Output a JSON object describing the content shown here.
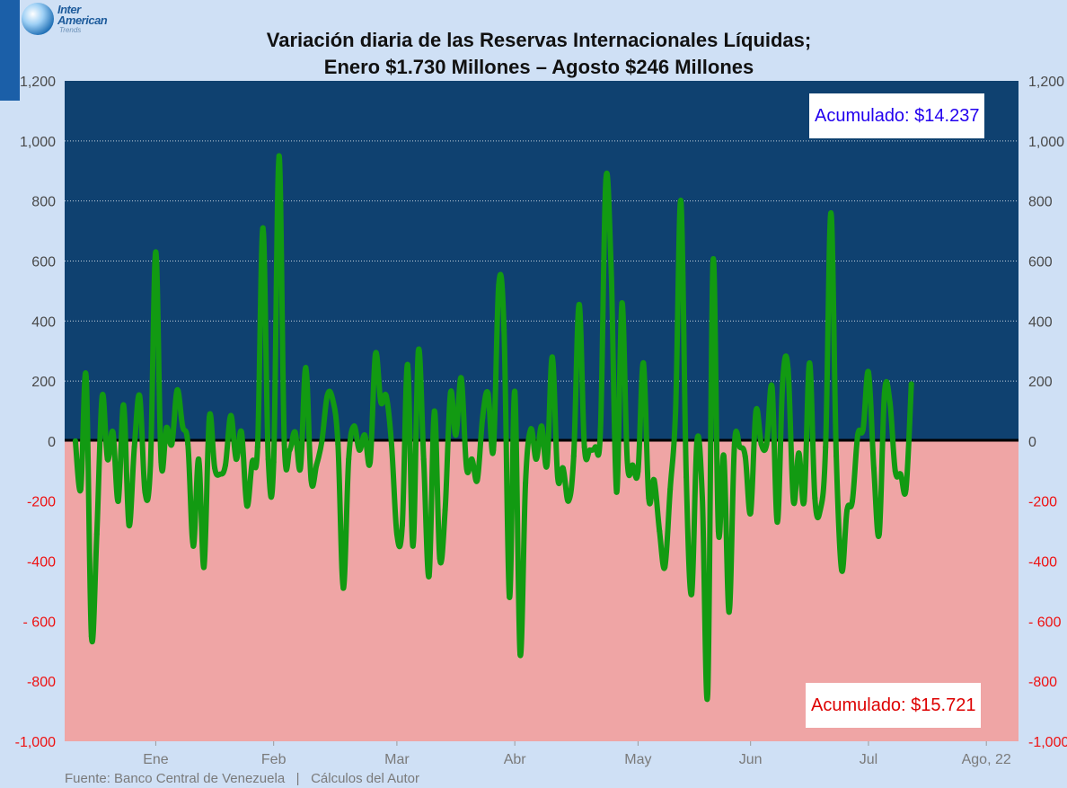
{
  "logo": {
    "line1": "Inter",
    "line2": "American",
    "line3": "Trends"
  },
  "title": {
    "line1": "Variación diaria de las Reservas Internacionales Líquidas;",
    "line2": "Enero $1.730 Millones – Agosto $246 Millones"
  },
  "annotations": {
    "positive": "Acumulado: $14.237",
    "negative": "Acumulado: $15.721"
  },
  "source": "Fuente: Banco Central de Venezuela   |   Cálculos del Autor",
  "colors": {
    "positive_area": "#0f4170",
    "negative_area": "#efa5a5",
    "series_line": "#129a12",
    "zero_line": "#000000",
    "negative_tick": "#ee1111"
  },
  "chart_data": {
    "type": "line",
    "title": "Variación diaria de las Reservas Internacionales Líquidas; Enero $1.730 Millones – Agosto $246 Millones",
    "xlabel": "",
    "ylabel": "",
    "ylim": [
      -1000,
      1200
    ],
    "grid": true,
    "y_ticks_left": [
      "1,200",
      "1,000",
      "800",
      "600",
      "400",
      "200",
      "0",
      "-200",
      "-400",
      "- 600",
      "-800",
      "-1,000"
    ],
    "y_ticks_right": [
      "1,200",
      "1,000",
      "800",
      "600",
      "400",
      "200",
      "0",
      "-200",
      "-400",
      "- 600",
      "-800",
      "-1,000"
    ],
    "x_ticks": [
      {
        "label": "Ene",
        "x": 15
      },
      {
        "label": "Feb",
        "x": 37
      },
      {
        "label": "Mar",
        "x": 60
      },
      {
        "label": "Abr",
        "x": 82
      },
      {
        "label": "May",
        "x": 105
      },
      {
        "label": "Jun",
        "x": 126
      },
      {
        "label": "Jul",
        "x": 148
      },
      {
        "label": "Ago, 22",
        "x": 170
      }
    ],
    "x_range": [
      -2,
      176
    ],
    "series": [
      {
        "values": [
          0,
          -160,
          215,
          -650,
          -310,
          150,
          -60,
          30,
          -200,
          120,
          -280,
          -20,
          150,
          -170,
          -80,
          630,
          -70,
          45,
          -10,
          170,
          50,
          -10,
          -350,
          -60,
          -420,
          80,
          -90,
          -110,
          -80,
          85,
          -60,
          30,
          -215,
          -70,
          -20,
          710,
          -60,
          -70,
          950,
          -10,
          -30,
          30,
          -90,
          245,
          -130,
          -80,
          0,
          150,
          140,
          -10,
          -490,
          -60,
          50,
          -30,
          20,
          -70,
          290,
          130,
          150,
          -10,
          -310,
          -280,
          255,
          -350,
          300,
          -60,
          -450,
          100,
          -390,
          -230,
          160,
          20,
          210,
          -90,
          -60,
          -130,
          80,
          160,
          -30,
          520,
          370,
          -520,
          165,
          -710,
          -140,
          40,
          -60,
          50,
          -80,
          280,
          -120,
          -90,
          -200,
          -50,
          455,
          -20,
          -30,
          -20,
          40,
          870,
          560,
          -170,
          460,
          -70,
          -80,
          -100,
          260,
          -190,
          -130,
          -300,
          -420,
          -160,
          100,
          800,
          -120,
          -510,
          0,
          -190,
          -840,
          600,
          -300,
          -50,
          -570,
          -10,
          -20,
          -50,
          -240,
          100,
          -10,
          -10,
          180,
          -270,
          200,
          240,
          -200,
          -40,
          -200,
          260,
          -190,
          -230,
          -20,
          760,
          -50,
          -430,
          -230,
          -200,
          20,
          40,
          230,
          -90,
          -310,
          160,
          130,
          -100,
          -110,
          -160,
          190
        ]
      }
    ]
  }
}
